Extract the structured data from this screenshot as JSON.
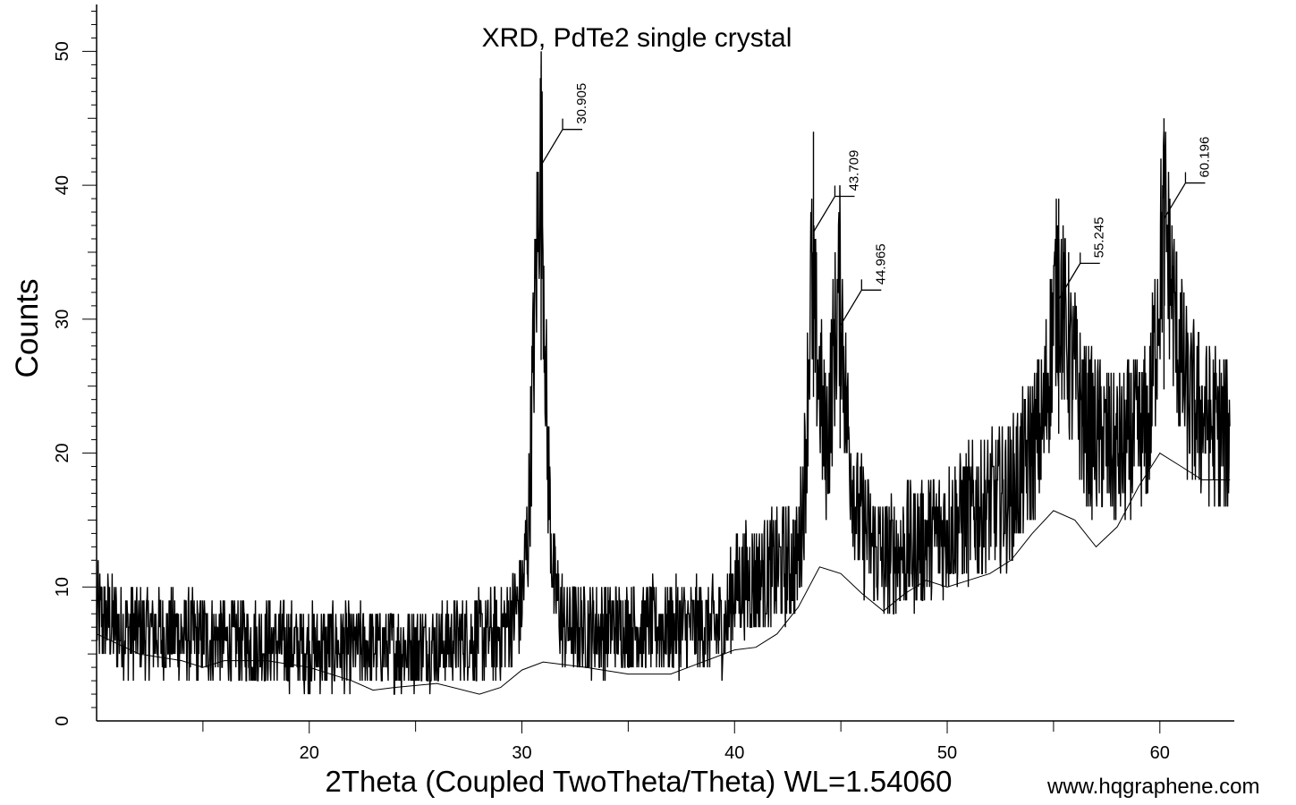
{
  "watermark": "www.hqgraphene.com",
  "chart_data": {
    "type": "line",
    "title": "XRD, PdTe2 single crystal",
    "xlabel": "2Theta (Coupled TwoTheta/Theta) WL=1.54060",
    "ylabel": "Counts",
    "xlim": [
      10,
      63.5
    ],
    "ylim": [
      0,
      53.5
    ],
    "xticks": [
      20,
      30,
      40,
      50,
      60
    ],
    "yticks": [
      0,
      10,
      20,
      30,
      40,
      50
    ],
    "grid": false,
    "colors": {
      "line": "#000000"
    },
    "peaks": [
      {
        "x": 30.905,
        "label": "30.905",
        "y": 49
      },
      {
        "x": 43.709,
        "label": "43.709",
        "y": 44
      },
      {
        "x": 44.965,
        "label": "44.965",
        "y": 37
      },
      {
        "x": 55.245,
        "label": "55.245",
        "y": 39
      },
      {
        "x": 60.196,
        "label": "60.196",
        "y": 45
      }
    ],
    "background": {
      "x": [
        10,
        12,
        14,
        15,
        16,
        18,
        20,
        22,
        23,
        24,
        26,
        28,
        29,
        30,
        31,
        33,
        35,
        37,
        40,
        41,
        42,
        43,
        44,
        45,
        46,
        47,
        48,
        49,
        50,
        51,
        52,
        53,
        54,
        55,
        56,
        57,
        58,
        59,
        60,
        61,
        62,
        63.3
      ],
      "y": [
        6.5,
        5.0,
        4.5,
        4.0,
        4.5,
        4.5,
        4.0,
        3.0,
        2.3,
        2.5,
        2.8,
        2.0,
        2.5,
        3.8,
        4.4,
        4.0,
        3.5,
        3.5,
        5.3,
        5.5,
        6.5,
        8.5,
        11.5,
        11.0,
        9.5,
        8.2,
        9.5,
        10.5,
        10.0,
        10.5,
        11.0,
        12.0,
        14.0,
        15.7,
        15.0,
        13.0,
        14.5,
        17.5,
        20.0,
        19.0,
        18.0,
        18.0
      ]
    },
    "noise_envelope": {
      "x": [
        10,
        11,
        13,
        20,
        25,
        29,
        30,
        30.3,
        30.6,
        30.9,
        31.2,
        31.5,
        32,
        36,
        39.5,
        40,
        43,
        43.3,
        43.6,
        43.9,
        44.3,
        44.6,
        44.96,
        45.3,
        45.8,
        47,
        49,
        51,
        53,
        54.5,
        55.2,
        55.8,
        56.5,
        58,
        59.5,
        60.2,
        60.7,
        61.3,
        62.5,
        63.3
      ],
      "y": [
        8,
        7,
        6.5,
        5.5,
        5.5,
        6.5,
        9,
        14,
        30,
        44,
        20,
        10,
        7,
        7,
        7,
        10,
        12,
        18,
        33,
        27,
        20,
        26,
        33,
        22,
        15,
        12,
        13.5,
        15.5,
        17,
        22,
        33,
        27,
        22,
        20,
        22,
        38,
        30,
        24,
        22,
        21
      ]
    }
  }
}
